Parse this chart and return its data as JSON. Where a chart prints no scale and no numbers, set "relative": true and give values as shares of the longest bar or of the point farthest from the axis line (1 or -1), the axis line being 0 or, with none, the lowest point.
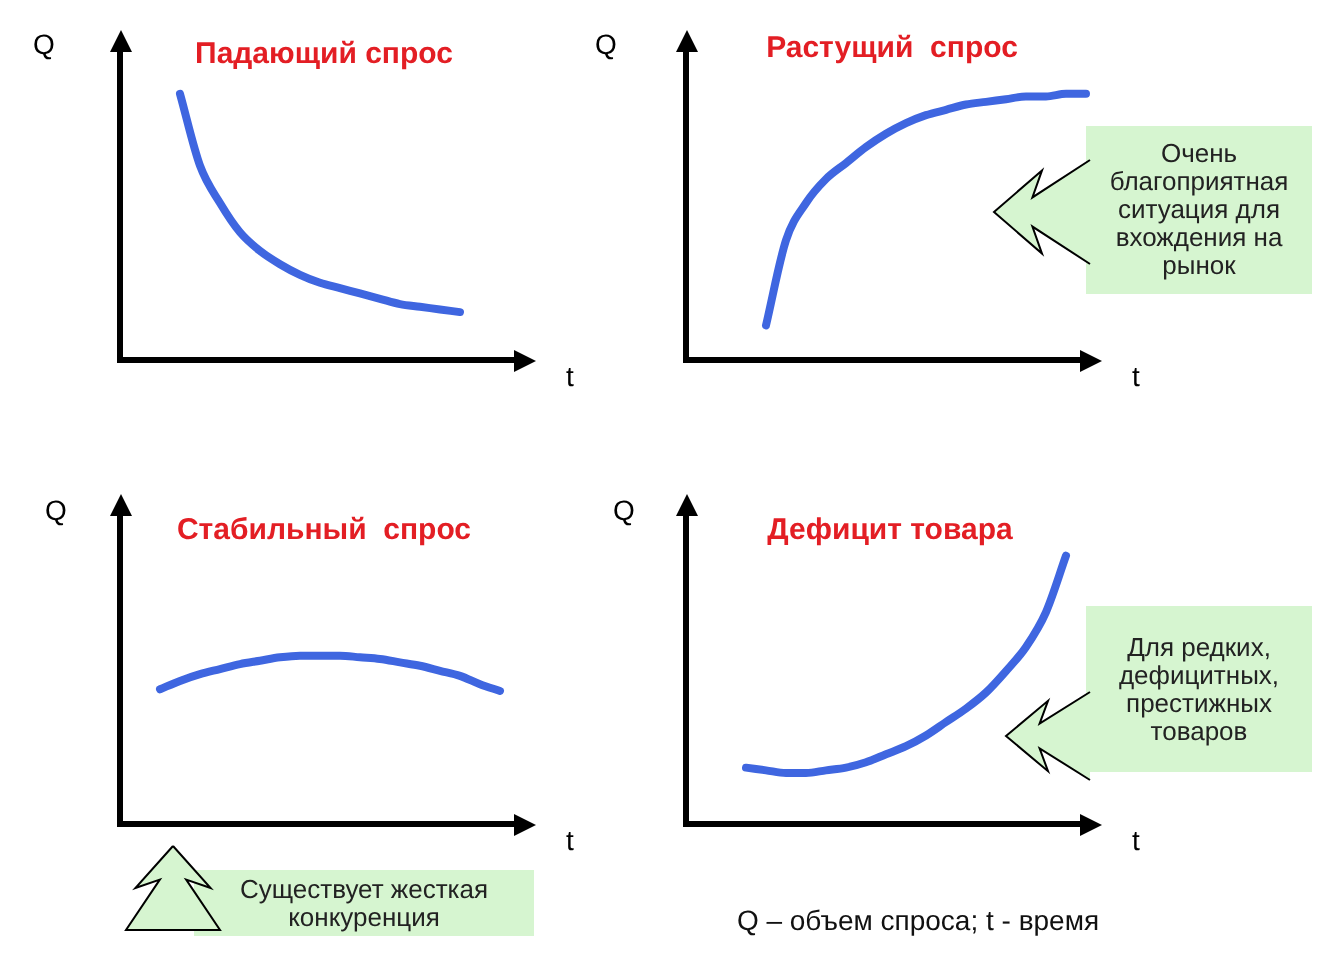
{
  "chart_data": [
    {
      "type": "line",
      "title": "Падающий спрос",
      "xlabel": "t",
      "ylabel": "Q",
      "relative": true,
      "categories": [
        null,
        null,
        null,
        null,
        null,
        null,
        null,
        null,
        null,
        null,
        null,
        null,
        null,
        null,
        null,
        null,
        null,
        null,
        null,
        null,
        null
      ],
      "values": [
        null,
        null,
        null,
        1.0,
        0.73,
        0.59,
        0.48,
        0.41,
        0.36,
        0.32,
        0.29,
        0.27,
        0.25,
        0.23,
        0.21,
        0.2,
        0.19,
        0.18,
        null,
        null,
        null
      ],
      "color": "#3f66e0",
      "marker": "none",
      "line_style": "solid",
      "legend": false,
      "tick_labels": false
    },
    {
      "type": "line",
      "title": "Растущий  спрос",
      "xlabel": "t",
      "ylabel": "Q",
      "relative": true,
      "categories": [
        null,
        null,
        null,
        null,
        null,
        null,
        null,
        null,
        null,
        null,
        null,
        null,
        null,
        null,
        null,
        null,
        null,
        null,
        null,
        null,
        null
      ],
      "values": [
        null,
        null,
        null,
        null,
        0.13,
        0.45,
        0.59,
        0.68,
        0.74,
        0.8,
        0.85,
        0.89,
        0.92,
        0.94,
        0.96,
        0.97,
        0.98,
        0.99,
        0.99,
        1.0,
        1.0
      ],
      "color": "#3f66e0",
      "marker": "none",
      "line_style": "solid",
      "legend": false,
      "tick_labels": false,
      "annotations": [
        "Очень благоприятная ситуация для вхождения на рынок"
      ]
    },
    {
      "type": "line",
      "title": "Стабильный  спрос",
      "xlabel": "t",
      "ylabel": "Q",
      "relative": true,
      "categories": [
        null,
        null,
        null,
        null,
        null,
        null,
        null,
        null,
        null,
        null,
        null,
        null,
        null,
        null,
        null,
        null,
        null,
        null,
        null,
        null,
        null
      ],
      "values": [
        null,
        null,
        0.8,
        0.85,
        0.89,
        0.92,
        0.95,
        0.97,
        0.99,
        1.0,
        1.0,
        1.0,
        0.99,
        0.98,
        0.96,
        0.94,
        0.91,
        0.88,
        0.83,
        0.79,
        null
      ],
      "color": "#3f66e0",
      "marker": "none",
      "line_style": "solid",
      "legend": false,
      "tick_labels": false,
      "annotations": [
        "Существует жесткая конкуренция"
      ]
    },
    {
      "type": "line",
      "title": "Дефицит товара",
      "xlabel": "t",
      "ylabel": "Q",
      "relative": true,
      "categories": [
        null,
        null,
        null,
        null,
        null,
        null,
        null,
        null,
        null,
        null,
        null,
        null,
        null,
        null,
        null,
        null,
        null,
        null,
        null,
        null,
        null
      ],
      "values": [
        null,
        null,
        null,
        0.21,
        0.2,
        0.19,
        0.19,
        0.2,
        0.21,
        0.23,
        0.26,
        0.29,
        0.33,
        0.38,
        0.43,
        0.49,
        0.57,
        0.66,
        0.79,
        1.0,
        null
      ],
      "color": "#3f66e0",
      "marker": "none",
      "line_style": "solid",
      "legend": false,
      "tick_labels": false,
      "annotations": [
        "Для редких, дефицитных, престижных товаров",
        "Q – объем спроса; t - время"
      ]
    }
  ]
}
